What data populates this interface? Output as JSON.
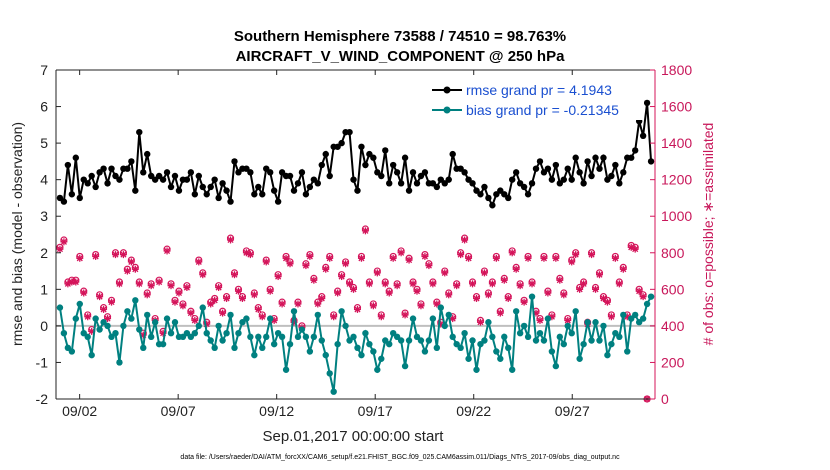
{
  "chart_data": {
    "type": "line",
    "title_line1": "Southern Hemisphere 73588 / 74510 = 98.763%",
    "title_line2": "AIRCRAFT_V_WIND_COMPONENT @ 250 hPa",
    "ylabel_left": "rmse and bias (model - observation)",
    "ylabel_right": "# of obs: o=possible; ∗=assimilated",
    "xlabel": "Sep.01,2017 00:00:00 start",
    "footnote": "data file: /Users/raeder/DAI/ATM_forcXX/CAM6_setup/f.e21.FHIST_BGC.f09_025.CAM6assim.011/Diags_NTrS_2017-09/obs_diag_output.nc",
    "xlim": [
      0.8,
      31.2
    ],
    "ylim_left": [
      -2,
      7
    ],
    "ylim_right": [
      0,
      1800
    ],
    "x_ticks": [
      2,
      7,
      12,
      17,
      22,
      27
    ],
    "x_tick_labels": [
      "09/02",
      "09/07",
      "09/12",
      "09/17",
      "09/22",
      "09/27"
    ],
    "y_ticks_left": [
      "-2",
      "-1",
      "0",
      "1",
      "2",
      "3",
      "4",
      "5",
      "6",
      "7"
    ],
    "y_ticks_right": [
      "0",
      "200",
      "400",
      "600",
      "800",
      "1000",
      "1200",
      "1400",
      "1600",
      "1800"
    ],
    "colors": {
      "rmse": "#000000",
      "bias": "#008080",
      "obs": "#d4145a",
      "zero": "#bfbfbf"
    },
    "legend": [
      {
        "label": "rmse grand pr = 4.1943",
        "key": "rmse"
      },
      {
        "label": "bias grand pr = -0.21345",
        "key": "bias"
      }
    ],
    "series_rmse": [
      3.5,
      3.4,
      4.4,
      3.6,
      4.6,
      3.5,
      4.0,
      3.9,
      4.1,
      3.8,
      4.2,
      4.3,
      3.9,
      4.3,
      4.1,
      4.0,
      4.3,
      4.3,
      4.5,
      3.7,
      5.3,
      4.2,
      4.7,
      4.1,
      4.0,
      4.1,
      4.0,
      4.2,
      3.8,
      4.1,
      3.7,
      4.0,
      4.0,
      4.2,
      3.6,
      4.1,
      3.8,
      3.6,
      3.8,
      4.0,
      3.5,
      3.9,
      3.7,
      3.4,
      4.5,
      4.2,
      4.3,
      4.3,
      4.2,
      3.6,
      3.8,
      3.6,
      4.3,
      4.2,
      3.7,
      3.4,
      4.2,
      4.1,
      4.1,
      3.7,
      3.9,
      4.2,
      3.6,
      3.8,
      4.0,
      3.9,
      4.4,
      4.7,
      4.1,
      4.9,
      4.9,
      5.0,
      5.3,
      5.3,
      4.0,
      3.7,
      4.9,
      4.4,
      4.7,
      4.6,
      4.2,
      4.1,
      4.8,
      3.9,
      4.4,
      4.2,
      3.9,
      4.6,
      3.7,
      4.2,
      3.9,
      4.1,
      4.2,
      3.9,
      3.9,
      3.8,
      4.0,
      3.9,
      4.0,
      4.7,
      4.3,
      4.3,
      4.2,
      4.0,
      3.9,
      3.7,
      3.6,
      3.8,
      3.5,
      3.3,
      3.6,
      3.7,
      3.6,
      3.5,
      4.0,
      4.2,
      3.9,
      3.8,
      3.6,
      3.9,
      4.3,
      4.5,
      4.2,
      4.3,
      4.0,
      4.4,
      3.9,
      4.0,
      4.3,
      4.0,
      4.6,
      4.2,
      3.9,
      4.5,
      4.1,
      4.6,
      4.3,
      4.6,
      4.0,
      4.1,
      4.4,
      3.9,
      4.2,
      4.6,
      4.6,
      4.8,
      5.6,
      5.2,
      6.1,
      4.5
    ],
    "series_bias": [
      0.5,
      -0.2,
      -0.6,
      -0.7,
      0.2,
      0.6,
      -0.2,
      -0.3,
      -0.8,
      0.2,
      -0.1,
      0.1,
      0.0,
      -0.3,
      -0.2,
      -1.0,
      0.0,
      0.4,
      0.2,
      0.7,
      -0.1,
      -0.6,
      0.3,
      -0.3,
      0.1,
      -0.5,
      -0.5,
      0.2,
      -0.2,
      0.1,
      -0.3,
      -0.3,
      -0.2,
      -0.3,
      -0.2,
      0.0,
      0.5,
      -0.2,
      -0.4,
      -0.6,
      0.0,
      -0.4,
      -0.2,
      0.3,
      -0.6,
      -0.2,
      0.1,
      0.2,
      -0.3,
      -0.8,
      -0.3,
      -0.6,
      -0.3,
      0.2,
      -0.5,
      -0.2,
      -0.3,
      -1.2,
      -0.5,
      0.4,
      -0.3,
      -0.1,
      -0.3,
      -0.7,
      -0.3,
      0.3,
      -0.4,
      -0.8,
      -1.3,
      -1.8,
      -0.5,
      0.4,
      0.0,
      -0.4,
      -0.3,
      -0.6,
      -0.8,
      -0.2,
      -0.5,
      -0.7,
      -1.2,
      -0.9,
      -0.4,
      -0.5,
      -0.2,
      -0.3,
      -0.4,
      -1.1,
      -0.4,
      0.2,
      -0.3,
      -0.4,
      -0.7,
      -0.4,
      0.2,
      -0.6,
      0.5,
      0.0,
      0.3,
      -0.3,
      -0.5,
      -0.6,
      -0.2,
      -0.9,
      -0.4,
      -1.2,
      -0.5,
      -0.4,
      0.1,
      -0.3,
      -0.7,
      -0.9,
      -0.3,
      -0.6,
      -1.2,
      0.4,
      -0.2,
      0.0,
      -0.3,
      0.8,
      -0.4,
      -0.2,
      -0.4,
      0.2,
      -0.7,
      -1.1,
      -0.3,
      -0.5,
      0.0,
      -0.2,
      0.4,
      -0.9,
      -0.5,
      0.1,
      -0.4,
      0.1,
      -0.4,
      0.0,
      -0.8,
      -0.5,
      -0.2,
      -0.3,
      0.3,
      -0.7,
      0.2,
      0.3,
      0.1,
      0.2,
      0.6,
      0.8
    ],
    "series_obs_possible": [
      830,
      870,
      640,
      650,
      650,
      780,
      590,
      460,
      380,
      790,
      570,
      500,
      450,
      540,
      800,
      640,
      800,
      710,
      760,
      720,
      640,
      360,
      580,
      630,
      440,
      650,
      370,
      820,
      630,
      540,
      590,
      520,
      620,
      480,
      440,
      760,
      690,
      420,
      530,
      550,
      620,
      480,
      560,
      880,
      690,
      600,
      560,
      810,
      800,
      580,
      500,
      460,
      760,
      600,
      440,
      680,
      530,
      780,
      750,
      430,
      530,
      400,
      740,
      790,
      660,
      530,
      560,
      720,
      780,
      460,
      590,
      680,
      750,
      640,
      610,
      500,
      780,
      930,
      640,
      520,
      700,
      460,
      640,
      590,
      780,
      630,
      810,
      470,
      770,
      640,
      600,
      520,
      790,
      740,
      640,
      530,
      420,
      700,
      580,
      450,
      630,
      800,
      880,
      780,
      640,
      560,
      430,
      700,
      580,
      640,
      780,
      480,
      660,
      560,
      810,
      720,
      630,
      540,
      780,
      640,
      480,
      440,
      780,
      590,
      460,
      780,
      660,
      580,
      440,
      760,
      800,
      610,
      640,
      420,
      800,
      610,
      690,
      560,
      540,
      460,
      780,
      640,
      720,
      460,
      840,
      830,
      600,
      570,
      0
    ],
    "series_obs_assim": [
      820,
      860,
      630,
      640,
      640,
      770,
      580,
      450,
      370,
      780,
      560,
      490,
      440,
      530,
      790,
      630,
      790,
      700,
      750,
      710,
      630,
      350,
      570,
      620,
      430,
      640,
      360,
      810,
      620,
      530,
      580,
      510,
      610,
      470,
      430,
      750,
      680,
      410,
      520,
      540,
      610,
      470,
      550,
      870,
      680,
      590,
      550,
      800,
      790,
      570,
      490,
      450,
      750,
      590,
      430,
      670,
      520,
      770,
      740,
      420,
      520,
      390,
      730,
      780,
      650,
      520,
      550,
      710,
      770,
      450,
      580,
      670,
      740,
      630,
      600,
      490,
      770,
      920,
      630,
      510,
      690,
      450,
      630,
      580,
      770,
      620,
      800,
      460,
      760,
      630,
      590,
      510,
      780,
      730,
      630,
      520,
      410,
      690,
      570,
      440,
      620,
      790,
      870,
      770,
      630,
      550,
      420,
      690,
      570,
      630,
      770,
      470,
      650,
      550,
      800,
      710,
      620,
      530,
      770,
      630,
      470,
      430,
      770,
      580,
      450,
      770,
      650,
      570,
      430,
      750,
      790,
      600,
      630,
      410,
      790,
      600,
      680,
      550,
      530,
      450,
      770,
      630,
      710,
      450,
      830,
      820,
      590,
      560,
      0
    ]
  }
}
